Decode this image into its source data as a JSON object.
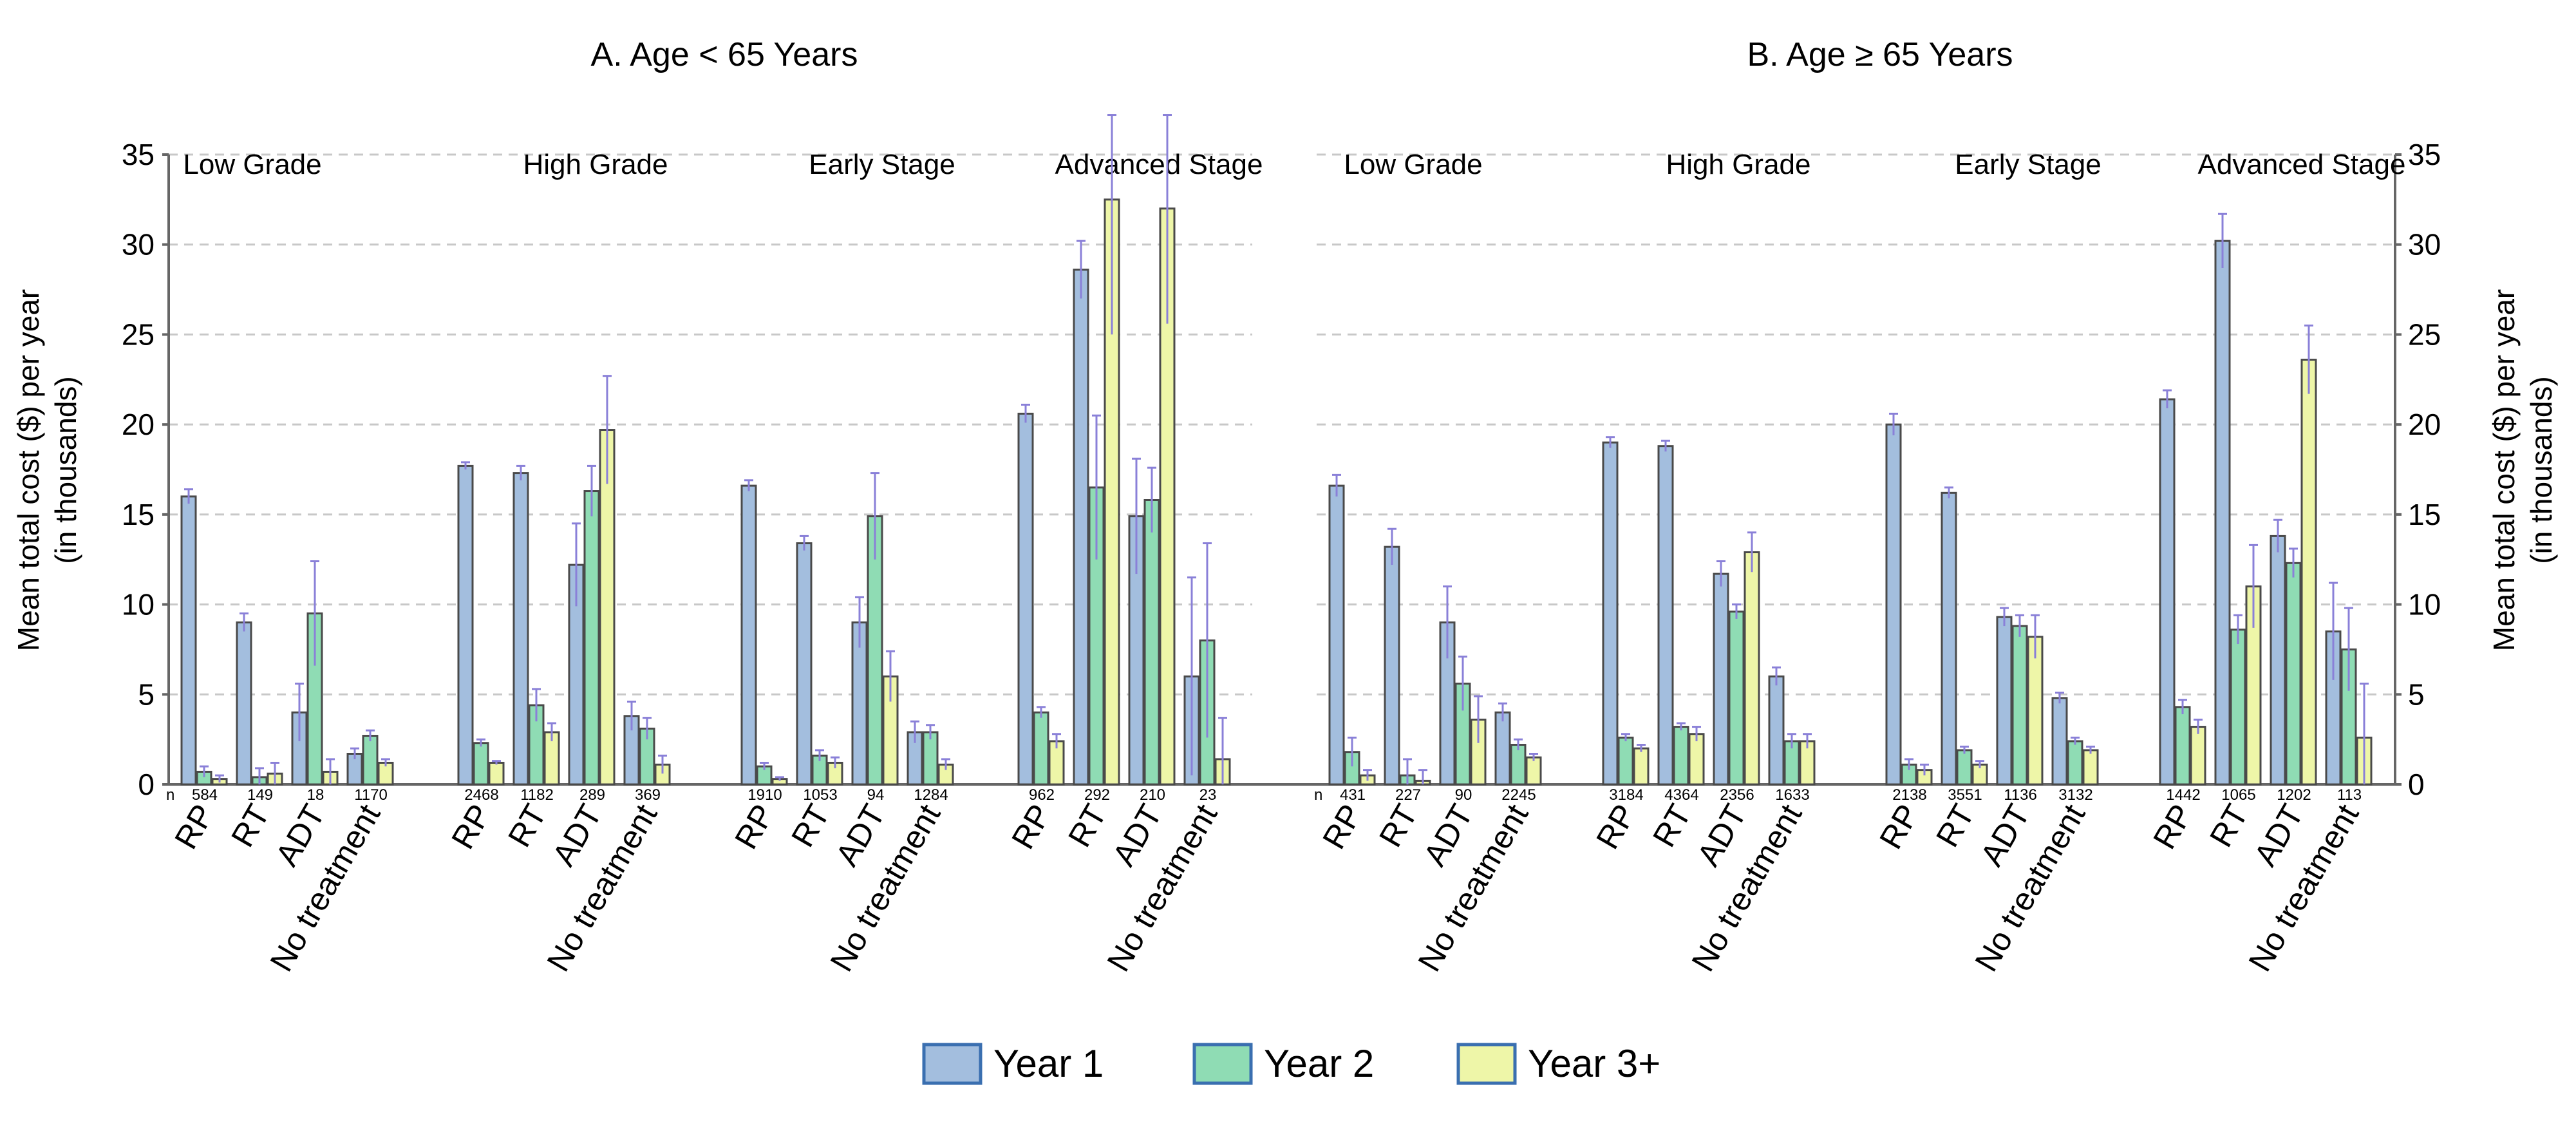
{
  "chart_data": {
    "type": "bar",
    "ylabel": "Mean total cost ($) per year",
    "ylabel_line2": "(in thousands)",
    "ylim": [
      0,
      35
    ],
    "yticks": [
      0,
      5,
      10,
      15,
      20,
      25,
      30,
      35
    ],
    "n_prefix": "n",
    "grid": "horizontal dashed",
    "series": [
      {
        "name": "Year 1",
        "color": "#a3bede"
      },
      {
        "name": "Year 2",
        "color": "#8fdcb4"
      },
      {
        "name": "Year 3+",
        "color": "#eef6a8"
      }
    ],
    "panels": [
      {
        "title": "A. Age < 65 Years",
        "groups": [
          {
            "label": "Low Grade",
            "treatments": [
              {
                "label": "RP",
                "n": "584",
                "values": [
                  16.0,
                  0.7,
                  0.3
                ],
                "err": [
                  0.4,
                  0.3,
                  0.2
                ]
              },
              {
                "label": "RT",
                "n": "149",
                "values": [
                  9.0,
                  0.4,
                  0.6
                ],
                "err": [
                  0.5,
                  0.5,
                  0.6
                ]
              },
              {
                "label": "ADT",
                "n": "18",
                "values": [
                  4.0,
                  9.5,
                  0.7
                ],
                "err": [
                  1.6,
                  2.9,
                  0.7
                ]
              },
              {
                "label": "No treatment",
                "n": "1170",
                "values": [
                  1.7,
                  2.7,
                  1.2
                ],
                "err": [
                  0.3,
                  0.3,
                  0.2
                ]
              }
            ]
          },
          {
            "label": "High Grade",
            "treatments": [
              {
                "label": "RP",
                "n": "2468",
                "values": [
                  17.7,
                  2.3,
                  1.2
                ],
                "err": [
                  0.2,
                  0.2,
                  0.1
                ]
              },
              {
                "label": "RT",
                "n": "1182",
                "values": [
                  17.3,
                  4.4,
                  2.9
                ],
                "err": [
                  0.4,
                  0.9,
                  0.5
                ]
              },
              {
                "label": "ADT",
                "n": "289",
                "values": [
                  12.2,
                  16.3,
                  19.7
                ],
                "err": [
                  2.3,
                  1.4,
                  3.0
                ]
              },
              {
                "label": "No treatment",
                "n": "369",
                "values": [
                  3.8,
                  3.1,
                  1.1
                ],
                "err": [
                  0.8,
                  0.6,
                  0.5
                ]
              }
            ]
          },
          {
            "label": "Early Stage",
            "treatments": [
              {
                "label": "RP",
                "n": "1910",
                "values": [
                  16.6,
                  1.0,
                  0.3
                ],
                "err": [
                  0.3,
                  0.2,
                  0.1
                ]
              },
              {
                "label": "RT",
                "n": "1053",
                "values": [
                  13.4,
                  1.6,
                  1.2
                ],
                "err": [
                  0.4,
                  0.3,
                  0.3
                ]
              },
              {
                "label": "ADT",
                "n": "94",
                "values": [
                  9.0,
                  14.9,
                  6.0
                ],
                "err": [
                  1.4,
                  2.4,
                  1.4
                ]
              },
              {
                "label": "No treatment",
                "n": "1284",
                "values": [
                  2.9,
                  2.9,
                  1.1
                ],
                "err": [
                  0.6,
                  0.4,
                  0.3
                ]
              }
            ]
          },
          {
            "label": "Advanced Stage",
            "treatments": [
              {
                "label": "RP",
                "n": "962",
                "values": [
                  20.6,
                  4.0,
                  2.4
                ],
                "err": [
                  0.5,
                  0.3,
                  0.4
                ]
              },
              {
                "label": "RT",
                "n": "292",
                "values": [
                  28.6,
                  16.5,
                  32.5
                ],
                "err": [
                  1.6,
                  4.0,
                  7.5
                ]
              },
              {
                "label": "ADT",
                "n": "210",
                "values": [
                  14.9,
                  15.8,
                  32.0
                ],
                "err": [
                  3.2,
                  1.8,
                  6.4
                ]
              },
              {
                "label": "No treatment",
                "n": "23",
                "values": [
                  6.0,
                  8.0,
                  1.4
                ],
                "err": [
                  5.5,
                  5.4,
                  2.3
                ]
              }
            ]
          }
        ]
      },
      {
        "title": "B. Age ≥ 65 Years",
        "groups": [
          {
            "label": "Low Grade",
            "treatments": [
              {
                "label": "RP",
                "n": "431",
                "values": [
                  16.6,
                  1.8,
                  0.5
                ],
                "err": [
                  0.6,
                  0.8,
                  0.3
                ]
              },
              {
                "label": "RT",
                "n": "227",
                "values": [
                  13.2,
                  0.5,
                  0.2
                ],
                "err": [
                  1.0,
                  0.9,
                  0.6
                ]
              },
              {
                "label": "ADT",
                "n": "90",
                "values": [
                  9.0,
                  5.6,
                  3.6
                ],
                "err": [
                  2.0,
                  1.5,
                  1.3
                ]
              },
              {
                "label": "No treatment",
                "n": "2245",
                "values": [
                  4.0,
                  2.2,
                  1.5
                ],
                "err": [
                  0.5,
                  0.3,
                  0.2
                ]
              }
            ]
          },
          {
            "label": "High Grade",
            "treatments": [
              {
                "label": "RP",
                "n": "3184",
                "values": [
                  19.0,
                  2.6,
                  2.0
                ],
                "err": [
                  0.3,
                  0.2,
                  0.2
                ]
              },
              {
                "label": "RT",
                "n": "4364",
                "values": [
                  18.8,
                  3.2,
                  2.8
                ],
                "err": [
                  0.3,
                  0.2,
                  0.4
                ]
              },
              {
                "label": "ADT",
                "n": "2356",
                "values": [
                  11.7,
                  9.6,
                  12.9
                ],
                "err": [
                  0.7,
                  0.4,
                  1.1
                ]
              },
              {
                "label": "No treatment",
                "n": "1633",
                "values": [
                  6.0,
                  2.4,
                  2.4
                ],
                "err": [
                  0.5,
                  0.4,
                  0.4
                ]
              }
            ]
          },
          {
            "label": "Early Stage",
            "treatments": [
              {
                "label": "RP",
                "n": "2138",
                "values": [
                  20.0,
                  1.1,
                  0.8
                ],
                "err": [
                  0.6,
                  0.3,
                  0.3
                ]
              },
              {
                "label": "RT",
                "n": "3551",
                "values": [
                  16.2,
                  1.9,
                  1.1
                ],
                "err": [
                  0.3,
                  0.2,
                  0.2
                ]
              },
              {
                "label": "ADT",
                "n": "1136",
                "values": [
                  9.3,
                  8.8,
                  8.2
                ],
                "err": [
                  0.5,
                  0.6,
                  1.2
                ]
              },
              {
                "label": "No treatment",
                "n": "3132",
                "values": [
                  4.8,
                  2.4,
                  1.9
                ],
                "err": [
                  0.3,
                  0.2,
                  0.2
                ]
              }
            ]
          },
          {
            "label": "Advanced Stage",
            "treatments": [
              {
                "label": "RP",
                "n": "1442",
                "values": [
                  21.4,
                  4.3,
                  3.2
                ],
                "err": [
                  0.5,
                  0.4,
                  0.4
                ]
              },
              {
                "label": "RT",
                "n": "1065",
                "values": [
                  30.2,
                  8.6,
                  11.0
                ],
                "err": [
                  1.5,
                  0.8,
                  2.3
                ]
              },
              {
                "label": "ADT",
                "n": "1202",
                "values": [
                  13.8,
                  12.3,
                  23.6
                ],
                "err": [
                  0.9,
                  0.8,
                  1.9
                ]
              },
              {
                "label": "No treatment",
                "n": "113",
                "values": [
                  8.5,
                  7.5,
                  2.6
                ],
                "err": [
                  2.7,
                  2.3,
                  3.0
                ]
              }
            ]
          }
        ]
      }
    ]
  }
}
